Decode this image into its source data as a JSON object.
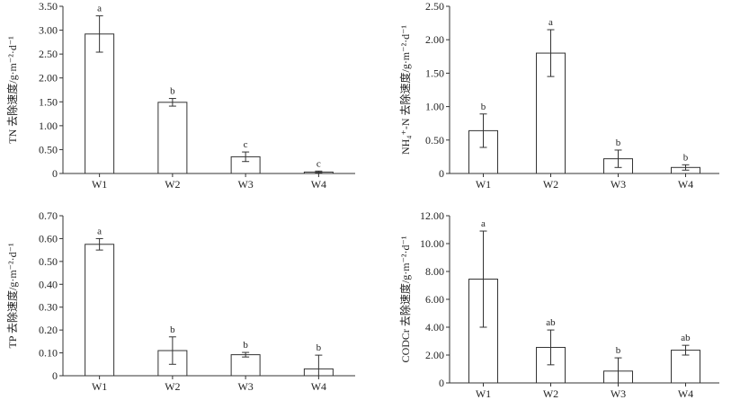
{
  "chart_data": [
    {
      "type": "bar",
      "ylabel": "TN 去除速度/g·m⁻²·d⁻¹",
      "categories": [
        "W1",
        "W2",
        "W3",
        "W4"
      ],
      "values": [
        2.92,
        1.49,
        0.35,
        0.03
      ],
      "errors": [
        0.38,
        0.08,
        0.1,
        0.02
      ],
      "significance": [
        "a",
        "b",
        "c",
        "c"
      ],
      "ylim": [
        0,
        3.5
      ],
      "yticks": [
        "0",
        "0.50",
        "1.00",
        "1.50",
        "2.00",
        "2.50",
        "3.00",
        "3.50"
      ]
    },
    {
      "type": "bar",
      "ylabel": "NH₄⁺-N 去除速度/g·m⁻²·d⁻¹",
      "categories": [
        "W1",
        "W2",
        "W3",
        "W4"
      ],
      "values": [
        0.64,
        1.8,
        0.22,
        0.09
      ],
      "errors": [
        0.25,
        0.35,
        0.13,
        0.04
      ],
      "significance": [
        "b",
        "a",
        "b",
        "b"
      ],
      "ylim": [
        0,
        2.5
      ],
      "yticks": [
        "0",
        "0.50",
        "1.00",
        "1.50",
        "2.00",
        "2.50"
      ]
    },
    {
      "type": "bar",
      "ylabel": "TP 去除速度/g·m⁻²·d⁻¹",
      "categories": [
        "W1",
        "W2",
        "W3",
        "W4"
      ],
      "values": [
        0.575,
        0.11,
        0.092,
        0.03
      ],
      "errors": [
        0.025,
        0.06,
        0.01,
        0.06
      ],
      "significance": [
        "a",
        "b",
        "b",
        "b"
      ],
      "ylim": [
        0,
        0.7
      ],
      "yticks": [
        "0",
        "0.10",
        "0.20",
        "0.30",
        "0.40",
        "0.50",
        "0.60",
        "0.70"
      ]
    },
    {
      "type": "bar",
      "ylabel": "CODCr 去除速度/g·m⁻²·d⁻¹",
      "categories": [
        "W1",
        "W2",
        "W3",
        "W4"
      ],
      "values": [
        7.45,
        2.55,
        0.85,
        2.35
      ],
      "errors": [
        3.45,
        1.25,
        0.95,
        0.35
      ],
      "significance": [
        "a",
        "ab",
        "b",
        "ab"
      ],
      "ylim": [
        0,
        12
      ],
      "yticks": [
        "0",
        "2.00",
        "4.00",
        "6.00",
        "8.00",
        "10.00",
        "12.00"
      ]
    }
  ]
}
